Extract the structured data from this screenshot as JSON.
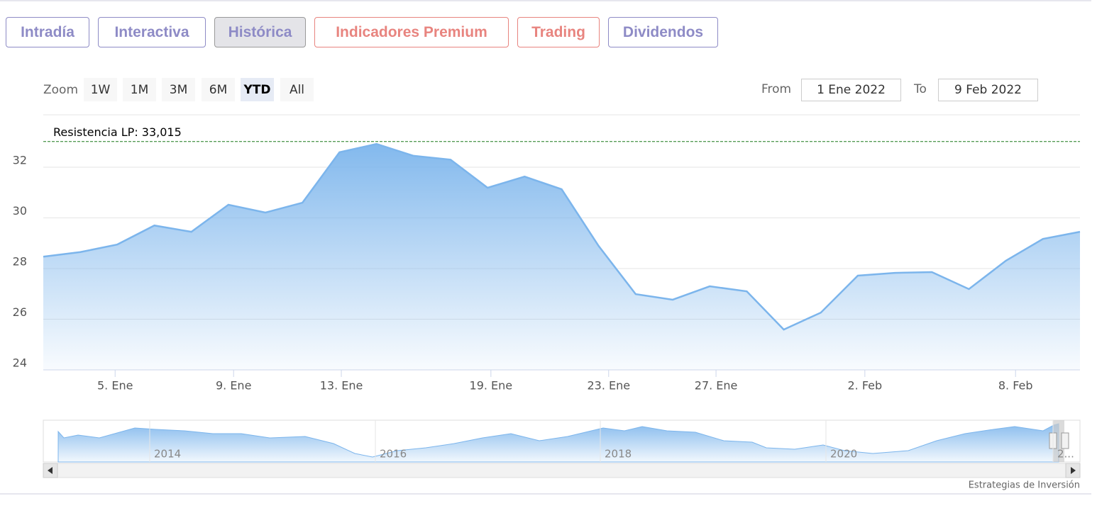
{
  "tabs": [
    {
      "label": "Intradía",
      "color": "#8e8bc6"
    },
    {
      "label": "Interactiva",
      "color": "#8e8bc6"
    },
    {
      "label": "Histórica",
      "color": "#8e8bc6"
    },
    {
      "label": "Indicadores Premium",
      "color": "#e8847f"
    },
    {
      "label": "Trading",
      "color": "#e8847f"
    },
    {
      "label": "Dividendos",
      "color": "#8e8bc6"
    }
  ],
  "selected_tab": 2,
  "zoom": {
    "label": "Zoom",
    "buttons": [
      "1W",
      "1M",
      "3M",
      "6M",
      "YTD",
      "All"
    ],
    "selected": 4
  },
  "range": {
    "from_label": "From",
    "from": "1 Ene 2022",
    "to_label": "To",
    "to": "9 Feb 2022"
  },
  "chart_data": {
    "type": "area",
    "x": [
      0,
      1,
      2,
      3,
      4,
      5,
      6,
      7,
      8,
      9,
      10,
      11,
      12,
      13,
      14,
      15,
      16,
      17,
      18,
      19,
      20,
      21,
      22,
      23,
      24,
      25,
      26,
      27,
      28
    ],
    "values": [
      28.47,
      28.65,
      28.95,
      29.7,
      29.45,
      30.52,
      30.21,
      30.6,
      32.59,
      32.92,
      32.45,
      32.3,
      31.19,
      31.63,
      31.13,
      28.89,
      26.99,
      26.77,
      27.3,
      27.1,
      25.59,
      26.26,
      27.72,
      27.83,
      27.86,
      27.19,
      28.31,
      29.17,
      29.45
    ],
    "color": "#7cb5ec",
    "xlim": [
      0,
      28
    ],
    "xticks": [
      {
        "value": 1.94,
        "label": "5. Ene"
      },
      {
        "value": 5.14,
        "label": "9. Ene"
      },
      {
        "value": 8.05,
        "label": "13. Ene"
      },
      {
        "value": 12.09,
        "label": "19. Ene"
      },
      {
        "value": 15.27,
        "label": "23. Ene"
      },
      {
        "value": 18.17,
        "label": "27. Ene"
      },
      {
        "value": 22.19,
        "label": "2. Feb"
      },
      {
        "value": 26.26,
        "label": "8. Feb"
      }
    ],
    "ylim": [
      24,
      34.07
    ],
    "yticks": [
      24,
      26,
      28,
      30,
      32
    ],
    "grid": true,
    "plot_line": {
      "value": 33.015,
      "label": "Resistencia LP: 33,015",
      "color": "#1a7a1a"
    }
  },
  "navigator": {
    "labels": [
      "2014",
      "2016",
      "2018",
      "2020",
      "2..."
    ]
  },
  "credit": "Estrategias de Inversión"
}
